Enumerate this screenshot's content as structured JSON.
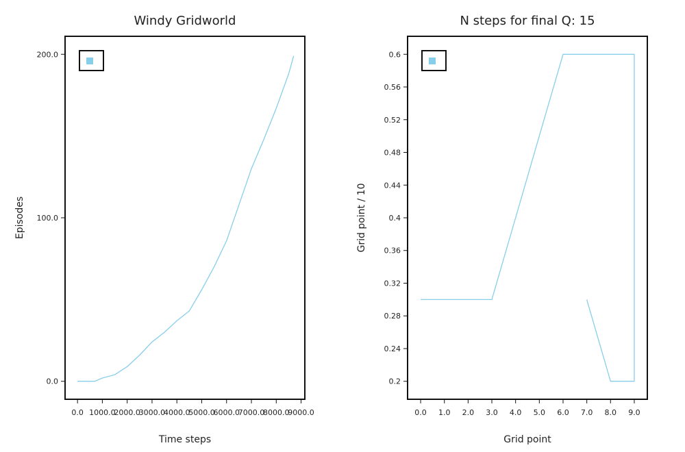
{
  "chart_data": [
    {
      "type": "line",
      "title": "Windy Gridworld",
      "xlabel": "Time steps",
      "ylabel": "Episodes",
      "xlim": [
        -500,
        9150
      ],
      "ylim": [
        -11,
        211
      ],
      "x_ticks": [
        0,
        1000,
        2000,
        3000,
        4000,
        5000,
        6000,
        7000,
        8000,
        9000
      ],
      "x_tick_labels": [
        "0.0",
        "1000.0",
        "2000.0",
        "3000.0",
        "4000.0",
        "5000.0",
        "6000.0",
        "7000.0",
        "8000.0",
        "9000.0"
      ],
      "y_ticks": [
        0,
        100,
        200
      ],
      "y_tick_labels": [
        "0.0",
        "100.0",
        "200.0"
      ],
      "legend": "top-left",
      "color": "#87ceeb",
      "series": [
        {
          "x": [
            0,
            700,
            1000,
            1500,
            2000,
            2500,
            3000,
            3500,
            4000,
            4500,
            5000,
            5500,
            6000,
            6500,
            7000,
            7500,
            8000,
            8500,
            8700
          ],
          "values": [
            0,
            0,
            2,
            4,
            9,
            16,
            24,
            30,
            37,
            43,
            56,
            70,
            86,
            108,
            130,
            148,
            167,
            188,
            199
          ]
        }
      ]
    },
    {
      "type": "line",
      "title": "N steps for final Q: 15",
      "xlabel": "Grid point",
      "ylabel": "Grid point / 10",
      "xlim": [
        -0.55,
        9.55
      ],
      "ylim": [
        0.178,
        0.622
      ],
      "x_ticks": [
        0,
        1,
        2,
        3,
        4,
        5,
        6,
        7,
        8,
        9
      ],
      "x_tick_labels": [
        "0.0",
        "1.0",
        "2.0",
        "3.0",
        "4.0",
        "5.0",
        "6.0",
        "7.0",
        "8.0",
        "9.0"
      ],
      "y_ticks": [
        0.2,
        0.24,
        0.28,
        0.32,
        0.36,
        0.4,
        0.44,
        0.48,
        0.52,
        0.56,
        0.6
      ],
      "y_tick_labels": [
        "0.2",
        "0.24",
        "0.28",
        "0.32",
        "0.36",
        "0.4",
        "0.44",
        "0.48",
        "0.52",
        "0.56",
        "0.6"
      ],
      "legend": "top-left",
      "color": "#87ceeb",
      "series": [
        {
          "x": [
            0,
            1,
            2,
            3,
            4,
            5,
            6,
            7,
            8,
            9,
            9,
            8,
            7
          ],
          "values": [
            0.3,
            0.3,
            0.3,
            0.3,
            0.4,
            0.5,
            0.6,
            0.6,
            0.6,
            0.6,
            0.2,
            0.2,
            0.3
          ]
        }
      ]
    }
  ]
}
